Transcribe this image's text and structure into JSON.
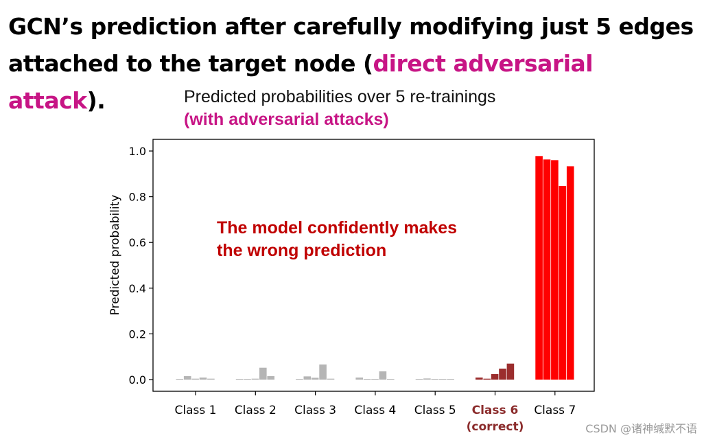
{
  "headline": {
    "line1": "GCN’s prediction after carefully modifying just 5 edges",
    "line2_prefix": "attached to the target node (",
    "line2_accent": "direct adversarial attack",
    "line2_suffix": ")."
  },
  "watermark": "CSDN @诸神缄默不语",
  "colors": {
    "headline_accent": "#c71585",
    "subtitle_accent": "#c71585",
    "annotation": "#c00000",
    "bar_other": "#b5b5b5",
    "bar_correct": "#9b2d2d",
    "bar_predicted": "#ff0000",
    "correct_label": "#8b2c2c"
  },
  "chart_data": {
    "type": "bar",
    "title": "Predicted probabilities over 5 re-trainings",
    "subtitle": "(with adversarial attacks)",
    "ylabel": "Predicted probability",
    "xlabel": "",
    "ylim": [
      0,
      1.05
    ],
    "yticks": [
      "0.0",
      "0.2",
      "0.4",
      "0.6",
      "0.8",
      "1.0"
    ],
    "annotation": [
      "The model confidently makes",
      "the wrong prediction"
    ],
    "categories": [
      {
        "label": "Class 1",
        "color": "#b5b5b5",
        "values": [
          0.003,
          0.015,
          0.004,
          0.009,
          0.004
        ]
      },
      {
        "label": "Class 2",
        "color": "#b5b5b5",
        "values": [
          0.002,
          0.002,
          0.004,
          0.052,
          0.015
        ]
      },
      {
        "label": "Class 3",
        "color": "#b5b5b5",
        "values": [
          0.003,
          0.014,
          0.008,
          0.066,
          0.004
        ]
      },
      {
        "label": "Class 4",
        "color": "#b5b5b5",
        "values": [
          0.009,
          0.002,
          0.003,
          0.036,
          0.003
        ]
      },
      {
        "label": "Class 5",
        "color": "#b5b5b5",
        "values": [
          0.003,
          0.005,
          0.003,
          0.003,
          0.003
        ]
      },
      {
        "label": "Class 6",
        "sublabel": "(correct)",
        "color": "#9b2d2d",
        "label_color": "#8b2c2c",
        "values": [
          0.009,
          0.004,
          0.024,
          0.048,
          0.07
        ]
      },
      {
        "label": "Class 7",
        "color": "#ff0000",
        "values": [
          0.978,
          0.963,
          0.96,
          0.847,
          0.933
        ]
      }
    ]
  }
}
